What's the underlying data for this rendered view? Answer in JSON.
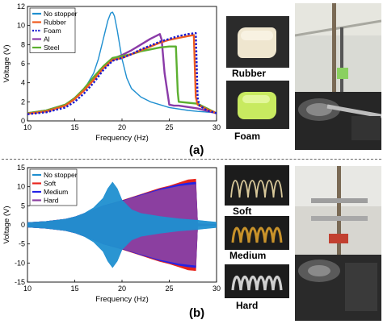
{
  "panel_a": {
    "letter": "(a)",
    "sample_labels": [
      "Rubber",
      "Foam"
    ]
  },
  "panel_b": {
    "letter": "(b)",
    "sample_labels": [
      "Soft",
      "Medium",
      "Hard"
    ]
  },
  "colors": {
    "no_stopper": "#1f8fd0",
    "rubber": "#f05a1e",
    "foam": "#1a1ad0",
    "al": "#8a3aa8",
    "steel": "#5cb030",
    "soft": "#e8241c",
    "medium": "#2323e6",
    "hard": "#8b3fa0"
  },
  "chart_data": [
    {
      "type": "line",
      "xlabel": "Frequency (Hz)",
      "ylabel": "Voltage (V)",
      "xlim": [
        10,
        30
      ],
      "ylim": [
        0,
        12
      ],
      "xticks": [
        10,
        15,
        20,
        25,
        30
      ],
      "yticks": [
        0,
        2,
        4,
        6,
        8,
        10,
        12
      ],
      "legend": "top-left",
      "series": [
        {
          "name": "No stopper",
          "x": [
            10,
            12,
            14,
            15,
            16,
            17,
            17.5,
            18,
            18.5,
            18.8,
            19,
            19.2,
            19.5,
            20,
            20.5,
            21,
            22,
            23,
            25,
            27,
            28,
            30
          ],
          "y": [
            0.8,
            1.1,
            1.7,
            2.3,
            3.3,
            5.0,
            6.5,
            8.5,
            10.5,
            11.3,
            11.4,
            11.0,
            9.5,
            6.5,
            4.5,
            3.4,
            2.5,
            2.0,
            1.4,
            1.1,
            1.0,
            0.85
          ]
        },
        {
          "name": "Rubber",
          "x": [
            10,
            12,
            14,
            15,
            16,
            17,
            18,
            19,
            20,
            21,
            22,
            23,
            24,
            25,
            26,
            27,
            27.6,
            27.8,
            28,
            29,
            30
          ],
          "y": [
            0.75,
            1.0,
            1.6,
            2.3,
            3.2,
            4.3,
            5.5,
            6.4,
            6.6,
            7.0,
            7.4,
            7.8,
            8.2,
            8.5,
            8.7,
            8.9,
            9.0,
            2.5,
            1.7,
            1.2,
            0.8
          ]
        },
        {
          "name": "Foam",
          "x": [
            10,
            12,
            14,
            15,
            16,
            17,
            18,
            19,
            20,
            21,
            22,
            23,
            24,
            25,
            26,
            27,
            27.8,
            28,
            28.2,
            29,
            30
          ],
          "y": [
            0.7,
            0.9,
            1.4,
            2.0,
            2.9,
            4.0,
            5.3,
            6.3,
            6.6,
            7.0,
            7.5,
            7.9,
            8.3,
            8.6,
            8.9,
            9.1,
            9.2,
            2.4,
            1.6,
            1.1,
            0.8
          ]
        },
        {
          "name": "Al",
          "x": [
            10,
            12,
            14,
            15,
            16,
            17,
            18,
            19,
            20,
            21,
            22,
            23,
            24,
            24.2,
            24.5,
            25,
            25.5,
            26,
            28,
            30
          ],
          "y": [
            0.8,
            1.1,
            1.7,
            2.3,
            3.3,
            4.5,
            5.6,
            6.5,
            6.9,
            7.4,
            8.0,
            8.6,
            9.1,
            8.5,
            5.0,
            1.7,
            1.6,
            1.6,
            1.3,
            0.8
          ]
        },
        {
          "name": "Steel",
          "x": [
            10,
            12,
            14,
            15,
            16,
            17,
            18,
            19,
            20,
            21,
            22,
            23,
            24,
            25,
            25.7,
            25.9,
            26,
            27,
            28,
            29,
            30
          ],
          "y": [
            0.8,
            1.1,
            1.7,
            2.4,
            3.4,
            4.6,
            5.7,
            6.6,
            6.8,
            7.0,
            7.3,
            7.5,
            7.7,
            7.8,
            7.8,
            3.0,
            2.0,
            1.9,
            1.8,
            1.3,
            0.8
          ]
        }
      ]
    },
    {
      "type": "area",
      "xlabel": "Frequency (Hz)",
      "ylabel": "Voltage (V)",
      "xlim": [
        10,
        30
      ],
      "ylim": [
        -15,
        15
      ],
      "xticks": [
        10,
        15,
        20,
        25,
        30
      ],
      "yticks": [
        -15,
        -10,
        -5,
        0,
        5,
        10,
        15
      ],
      "legend": "top-left",
      "series": [
        {
          "name": "No stopper",
          "x": [
            10,
            12,
            14,
            15,
            16,
            17,
            18,
            18.5,
            19,
            19.5,
            20,
            21,
            22,
            24,
            26,
            28,
            30
          ],
          "y": [
            0.6,
            0.9,
            1.5,
            2.1,
            3.0,
            4.5,
            7.0,
            9.5,
            11.2,
            9.5,
            6.5,
            4.0,
            3.0,
            2.2,
            1.6,
            1.2,
            0.7
          ]
        },
        {
          "name": "Soft",
          "x": [
            10,
            12,
            14,
            15,
            16,
            17,
            18,
            19,
            20,
            21,
            22,
            23,
            24,
            25,
            26,
            27,
            27.8,
            28,
            30
          ],
          "y": [
            0.6,
            0.9,
            1.5,
            2.1,
            3.0,
            4.0,
            5.0,
            5.7,
            6.4,
            7.2,
            8.0,
            8.8,
            9.6,
            10.2,
            11.0,
            11.8,
            12.0,
            0.3,
            0.1
          ]
        },
        {
          "name": "Medium",
          "x": [
            10,
            12,
            14,
            15,
            16,
            17,
            18,
            19,
            20,
            21,
            22,
            23,
            24,
            25,
            26,
            27,
            27.8,
            28,
            30
          ],
          "y": [
            0.6,
            0.9,
            1.5,
            2.1,
            3.0,
            4.0,
            5.0,
            5.6,
            6.3,
            7.1,
            7.9,
            8.6,
            9.4,
            10.0,
            10.6,
            11.0,
            11.2,
            0.3,
            0.1
          ]
        },
        {
          "name": "Hard",
          "x": [
            10,
            12,
            14,
            15,
            16,
            17,
            18,
            19,
            20,
            21,
            22,
            23,
            24,
            25,
            26,
            27,
            27.8,
            28,
            30
          ],
          "y": [
            0.6,
            0.9,
            1.5,
            2.0,
            2.9,
            3.9,
            4.9,
            5.5,
            6.2,
            7.0,
            7.7,
            8.4,
            9.1,
            9.6,
            10.1,
            10.4,
            10.6,
            0.3,
            0.1
          ]
        }
      ]
    }
  ]
}
